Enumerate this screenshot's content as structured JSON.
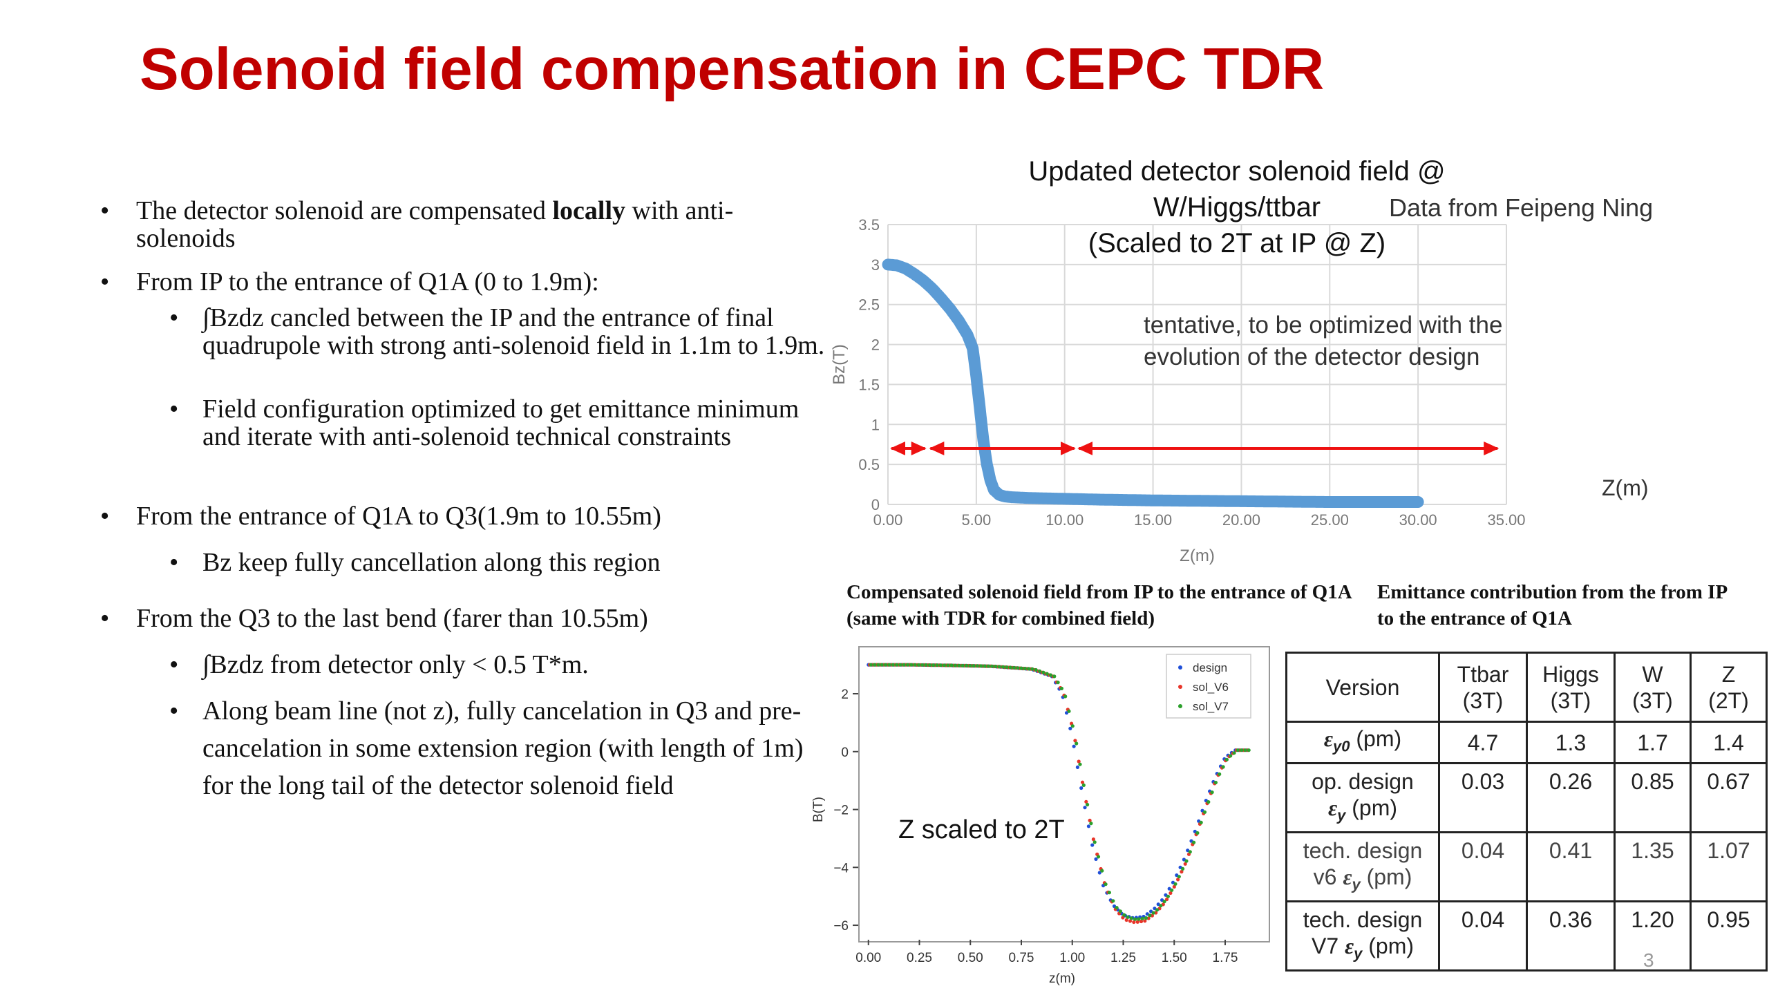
{
  "slide": {
    "title": "Solenoid field compensation in CEPC TDR",
    "page_number": "3"
  },
  "bullets": [
    {
      "prefix": "The detector solenoid are compensated ",
      "bold": "locally",
      "suffix": " with anti-solenoids"
    },
    {
      "text": "From IP to the entrance of Q1A (0 to 1.9m):"
    },
    {
      "text": "∫Bzdz cancled between the IP and the entrance of final quadrupole with strong anti-solenoid field in 1.1m to 1.9m."
    },
    {
      "text": "Field configuration optimized to get emittance minimum and iterate with anti-solenoid technical constraints"
    },
    {
      "text": "From the entrance of Q1A to Q3(1.9m to 10.55m)"
    },
    {
      "text": "Bz keep fully cancellation along this region"
    },
    {
      "text": "From the Q3 to the last bend (farer than 10.55m)"
    },
    {
      "text": "∫Bzdz from detector only < 0.5 T*m."
    },
    {
      "text": "Along beam line (not z), fully cancelation in Q3 and pre-cancelation in some extension region (with length of 1m) for the long tail of the detector solenoid field"
    }
  ],
  "chart1": {
    "title_lines": [
      "Updated detector solenoid field @",
      "W/Higgs/ttbar",
      "(Scaled to 2T at IP @ Z)"
    ],
    "credit": "Data from Feipeng Ning",
    "note": "tentative, to be optimized with the evolution of the detector design",
    "zm_label": "Z(m)",
    "colors": {
      "line": "#5b9bd5",
      "arrow": "#ee1111",
      "grid": "#d9d9d9"
    }
  },
  "chart2": {
    "note": "Z scaled to 2T",
    "colors": {
      "design": "#1f4fd8",
      "sol_V6": "#e8352a",
      "sol_V7": "#2ca02c"
    }
  },
  "captions": {
    "left": "Compensated solenoid field from IP to the entrance of Q1A (same with TDR for combined field)",
    "right": "Emittance contribution from the from IP to the entrance of Q1A"
  },
  "table": {
    "header": {
      "version": "Version",
      "cols": [
        [
          "Ttbar",
          "(3T)"
        ],
        [
          "Higgs",
          "(3T)"
        ],
        [
          "W",
          "(3T)"
        ],
        [
          "Z",
          "(2T)"
        ]
      ]
    },
    "rows": [
      {
        "label": [
          "εy0 (pm)"
        ],
        "bold": true,
        "values": [
          "4.7",
          "1.3",
          "1.7",
          "1.4"
        ]
      },
      {
        "label": [
          "op. design",
          "εy (pm)"
        ],
        "bold": true,
        "values": [
          "0.03",
          "0.26",
          "0.85",
          "0.67"
        ]
      },
      {
        "label": [
          "tech. design",
          "v6  εy (pm)"
        ],
        "bold": false,
        "values": [
          "0.04",
          "0.41",
          "1.35",
          "1.07"
        ]
      },
      {
        "label": [
          "tech. design",
          "V7  εy (pm)"
        ],
        "bold": true,
        "values": [
          "0.04",
          "0.36",
          "1.20",
          "0.95"
        ]
      }
    ]
  },
  "chart_data": [
    {
      "type": "scatter",
      "title": "Updated detector solenoid field @ W/Higgs/ttbar (Scaled to 2T at IP @ Z)",
      "xlabel": "Z(m)",
      "ylabel": "Bz(T)",
      "xlim": [
        0,
        35
      ],
      "ylim": [
        0,
        3.5
      ],
      "xticks": [
        "0.00",
        "5.00",
        "10.00",
        "15.00",
        "20.00",
        "25.00",
        "30.00",
        "35.00"
      ],
      "yticks": [
        "0",
        "0.5",
        "1",
        "1.5",
        "2",
        "2.5",
        "3",
        "3.5"
      ],
      "grid": true,
      "series": [
        {
          "x": [
            0,
            0.5,
            1,
            1.5,
            2,
            2.5,
            3,
            3.5,
            4,
            4.5,
            4.8,
            5.0,
            5.2,
            5.4,
            5.6,
            5.8,
            6.0,
            6.3,
            6.6,
            7.0,
            8,
            10,
            12,
            15,
            20,
            25,
            30
          ],
          "y": [
            3.0,
            2.99,
            2.95,
            2.88,
            2.8,
            2.7,
            2.58,
            2.45,
            2.3,
            2.12,
            1.95,
            1.6,
            1.2,
            0.8,
            0.5,
            0.3,
            0.18,
            0.12,
            0.1,
            0.09,
            0.08,
            0.07,
            0.06,
            0.05,
            0.04,
            0.03,
            0.03
          ]
        }
      ],
      "annotations": [
        "tentative, to be optimized with the evolution of the detector design",
        "Data from Feipeng Ning"
      ]
    },
    {
      "type": "scatter",
      "xlabel": "z(m)",
      "ylabel": "B(T)",
      "xlim": [
        -0.05,
        1.95
      ],
      "ylim": [
        -6.5,
        3.6
      ],
      "xticks": [
        "0.00",
        "0.25",
        "0.50",
        "0.75",
        "1.00",
        "1.25",
        "1.50",
        "1.75"
      ],
      "yticks": [
        "2",
        "0",
        "−2",
        "−4",
        "−6"
      ],
      "legend": "top-right",
      "series": [
        {
          "name": "design",
          "x": [
            0,
            0.2,
            0.4,
            0.6,
            0.8,
            0.9,
            0.95,
            1.0,
            1.05,
            1.1,
            1.15,
            1.2,
            1.25,
            1.3,
            1.35,
            1.4,
            1.45,
            1.5,
            1.55,
            1.6,
            1.65,
            1.7,
            1.75,
            1.8,
            1.85
          ],
          "y": [
            3.0,
            3.0,
            2.98,
            2.95,
            2.85,
            2.6,
            2.0,
            0.5,
            -1.5,
            -3.3,
            -4.6,
            -5.3,
            -5.65,
            -5.75,
            -5.7,
            -5.45,
            -5.05,
            -4.45,
            -3.7,
            -2.8,
            -1.8,
            -0.9,
            -0.2,
            0.05,
            0.05
          ]
        },
        {
          "name": "sol_V6",
          "x": [
            0,
            0.2,
            0.4,
            0.6,
            0.8,
            0.9,
            0.95,
            1.0,
            1.05,
            1.1,
            1.15,
            1.2,
            1.25,
            1.3,
            1.35,
            1.4,
            1.45,
            1.5,
            1.55,
            1.6,
            1.65,
            1.7,
            1.75,
            1.8,
            1.85
          ],
          "y": [
            3.0,
            3.0,
            2.98,
            2.95,
            2.85,
            2.6,
            2.05,
            0.7,
            -1.3,
            -3.1,
            -4.5,
            -5.4,
            -5.8,
            -5.9,
            -5.85,
            -5.6,
            -5.2,
            -4.6,
            -3.85,
            -2.9,
            -1.9,
            -0.95,
            -0.25,
            0.05,
            0.05
          ]
        },
        {
          "name": "sol_V7",
          "x": [
            0,
            0.2,
            0.4,
            0.6,
            0.8,
            0.9,
            0.95,
            1.0,
            1.05,
            1.1,
            1.15,
            1.2,
            1.25,
            1.3,
            1.35,
            1.4,
            1.45,
            1.5,
            1.55,
            1.6,
            1.65,
            1.7,
            1.75,
            1.8,
            1.85
          ],
          "y": [
            3.0,
            3.0,
            2.98,
            2.95,
            2.85,
            2.6,
            2.02,
            0.6,
            -1.4,
            -3.2,
            -4.55,
            -5.35,
            -5.7,
            -5.8,
            -5.75,
            -5.5,
            -5.1,
            -4.5,
            -3.75,
            -2.85,
            -1.85,
            -0.92,
            -0.22,
            0.05,
            0.05
          ]
        }
      ],
      "annotations": [
        "Z scaled to 2T"
      ]
    }
  ]
}
